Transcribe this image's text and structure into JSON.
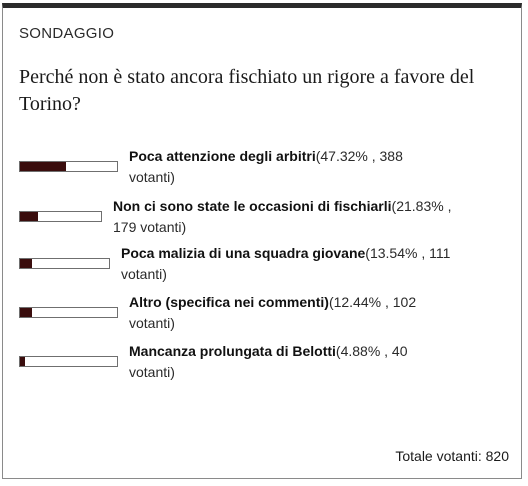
{
  "poll": {
    "section_label": "SONDAGGIO",
    "question": "Perché non è stato ancora fischiato un rigore a favore del Torino?",
    "colors": {
      "bar_fill": "#3a0d0d",
      "bar_border": "#6f6f6f",
      "top_border": "#2b2b2b"
    },
    "options": [
      {
        "label": "Poca attenzione degli arbitri",
        "percent": 47.32,
        "stats_line1": "(47.32% , 388",
        "stats_line2": "votanti)"
      },
      {
        "label": "Non ci sono state le occasioni di fischiarli",
        "percent": 21.83,
        "stats_line1": "(21.83% ,",
        "stats_line2": "179 votanti)"
      },
      {
        "label": "Poca malizia di una squadra giovane",
        "percent": 13.54,
        "stats_line1": "(13.54% , 111",
        "stats_line2": "votanti)"
      },
      {
        "label": "Altro (specifica nei commenti)",
        "percent": 12.44,
        "stats_line1": "(12.44% , 102",
        "stats_line2": "votanti)"
      },
      {
        "label": "Mancanza prolungata di Belotti",
        "percent": 4.88,
        "stats_line1": "(4.88% , 40",
        "stats_line2": "votanti)"
      }
    ],
    "total": "Totale votanti: 820"
  }
}
